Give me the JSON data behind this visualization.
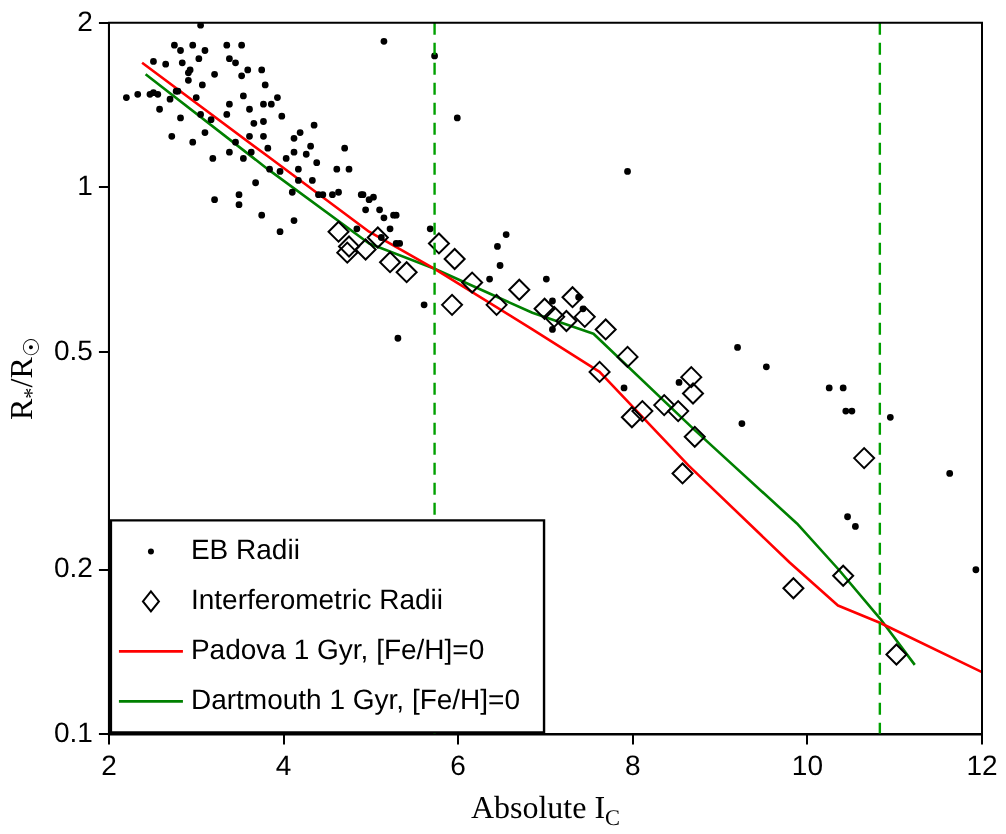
{
  "chart_data": {
    "type": "scatter",
    "xlabel": "Absolute I$_{C}$",
    "ylabel": "R$_{*}$/R$_{☉}$",
    "xlim": [
      2,
      12
    ],
    "xticks": [
      2,
      4,
      6,
      8,
      10,
      12
    ],
    "ylim": [
      0.1,
      2
    ],
    "yticks": [
      0.1,
      0.2,
      0.5,
      1,
      2
    ],
    "log": "y",
    "grid": false,
    "legend": "bottom left",
    "ref_lines": [
      {
        "axis": "x",
        "value": 5.73,
        "color": "#00a000",
        "line_style": "dashed"
      },
      {
        "axis": "x",
        "value": 10.83,
        "color": "#00a000",
        "line_style": "dashed"
      }
    ],
    "series": [
      {
        "name": "EB Radii",
        "marker": "circle",
        "color": "#000000",
        "x": [
          2.2,
          2.33,
          2.47,
          2.51,
          2.56,
          2.51,
          2.65,
          2.58,
          2.7,
          2.77,
          2.72,
          2.82,
          2.79,
          2.91,
          2.91,
          2.82,
          2.75,
          2.96,
          2.84,
          2.93,
          3.03,
          3.0,
          2.96,
          3.1,
          3.05,
          3.07,
          3.1,
          3.05,
          3.21,
          3.17,
          3.19,
          3.21,
          3.38,
          3.38,
          3.52,
          3.35,
          3.45,
          3.52,
          3.35,
          3.59,
          3.54,
          3.38,
          3.49,
          3.49,
          3.45,
          3.61,
          3.61,
          3.75,
          3.77,
          3.66,
          3.63,
          3.54,
          3.77,
          3.68,
          3.75,
          3.84,
          3.82,
          3.77,
          3.96,
          3.86,
          3.79,
          3.93,
          3.96,
          3.98,
          4.03,
          4.12,
          4.1,
          4.26,
          4.31,
          4.17,
          4.12,
          4.19,
          4.12,
          4.35,
          4.4,
          4.17,
          4.33,
          4.38,
          4.56,
          4.61,
          4.75,
          4.7,
          4.91,
          4.98,
          4.94,
          5.03,
          5.1,
          5.15,
          5.22,
          5.12,
          5.29,
          5.29,
          5.33,
          5.31,
          5.61,
          5.68,
          5.73,
          5.99,
          5.15,
          6.45,
          6.48,
          6.55,
          6.36,
          7.01,
          7.08,
          7.08,
          7.38,
          7.43,
          7.94,
          7.9,
          8.53,
          9.2,
          9.25,
          9.53,
          10.25,
          10.41,
          10.44,
          10.51,
          10.95,
          11.63,
          10.46,
          10.55,
          11.93,
          4.45,
          4.63,
          4.89,
          4.84,
          5.26
        ],
        "values": [
          1.46,
          1.48,
          1.48,
          1.49,
          1.48,
          1.7,
          1.68,
          1.39,
          1.45,
          1.5,
          1.24,
          1.34,
          1.5,
          1.57,
          1.62,
          1.78,
          1.82,
          1.82,
          1.69,
          1.64,
          1.72,
          1.46,
          1.21,
          1.26,
          1.36,
          1.54,
          1.78,
          1.98,
          1.61,
          1.33,
          1.13,
          0.95,
          1.42,
          1.72,
          1.82,
          1.82,
          1.69,
          1.6,
          1.36,
          1.64,
          1.47,
          1.16,
          0.97,
          0.93,
          1.21,
          1.24,
          1.39,
          1.64,
          1.42,
          1.31,
          1.16,
          1.13,
          1.32,
          1.02,
          0.89,
          1.08,
          1.18,
          1.24,
          1.07,
          1.42,
          1.54,
          1.46,
          0.83,
          1.35,
          1.13,
          1.16,
          0.98,
          1.15,
          1.19,
          1.08,
          0.87,
          1.26,
          1.23,
          1.3,
          0.97,
          1.03,
          1.03,
          1.11,
          0.97,
          1.08,
          1.08,
          1.18,
          0.97,
          0.95,
          0.91,
          0.96,
          0.91,
          0.88,
          0.84,
          0.81,
          0.89,
          0.79,
          0.79,
          0.53,
          0.61,
          0.84,
          1.74,
          1.34,
          1.85,
          0.78,
          0.72,
          0.82,
          0.68,
          0.68,
          0.62,
          0.55,
          0.63,
          0.6,
          1.07,
          0.43,
          0.44,
          0.51,
          0.37,
          0.47,
          0.43,
          0.43,
          0.39,
          0.39,
          0.38,
          0.3,
          0.25,
          0.24,
          0.2,
          0.97,
          0.98,
          0.97,
          0.84,
          0.89
        ]
      },
      {
        "name": "Interferometric Radii",
        "marker": "diamond",
        "color": "#000000",
        "x": [
          4.63,
          4.75,
          4.73,
          4.94,
          5.08,
          5.22,
          5.41,
          5.78,
          5.96,
          5.93,
          6.16,
          6.44,
          6.7,
          6.99,
          7.1,
          7.24,
          7.31,
          7.45,
          7.69,
          7.94,
          7.62,
          7.99,
          8.11,
          8.36,
          8.52,
          8.67,
          8.69,
          8.71,
          8.57,
          10.65,
          10.41,
          9.84,
          11.02
        ],
        "values": [
          0.83,
          0.78,
          0.76,
          0.77,
          0.81,
          0.73,
          0.7,
          0.79,
          0.74,
          0.61,
          0.67,
          0.61,
          0.65,
          0.6,
          0.58,
          0.57,
          0.63,
          0.58,
          0.55,
          0.49,
          0.46,
          0.38,
          0.39,
          0.4,
          0.39,
          0.45,
          0.42,
          0.35,
          0.3,
          0.32,
          0.195,
          0.185,
          0.14
        ]
      },
      {
        "name": "Padova 1 Gyr, [Fe/H]=0",
        "type": "line",
        "marker": "none",
        "line_style": "solid",
        "color": "#ff0000",
        "x": [
          2.38,
          3.82,
          4.98,
          5.73,
          6.85,
          7.62,
          8.64,
          9.8,
          10.35,
          10.83,
          12
        ],
        "values": [
          1.69,
          1.14,
          0.83,
          0.71,
          0.55,
          0.46,
          0.31,
          0.206,
          0.172,
          0.16,
          0.13
        ]
      },
      {
        "name": "Dartmouth 1 Gyr, [Fe/H]=0",
        "type": "line",
        "marker": "none",
        "line_style": "solid",
        "color": "#008000",
        "x": [
          2.42,
          3.82,
          4.98,
          5.73,
          6.85,
          7.55,
          8.71,
          9.88,
          10.36,
          10.83,
          11.23
        ],
        "values": [
          1.61,
          1.08,
          0.79,
          0.71,
          0.59,
          0.54,
          0.36,
          0.243,
          0.2,
          0.163,
          0.134
        ]
      }
    ]
  }
}
